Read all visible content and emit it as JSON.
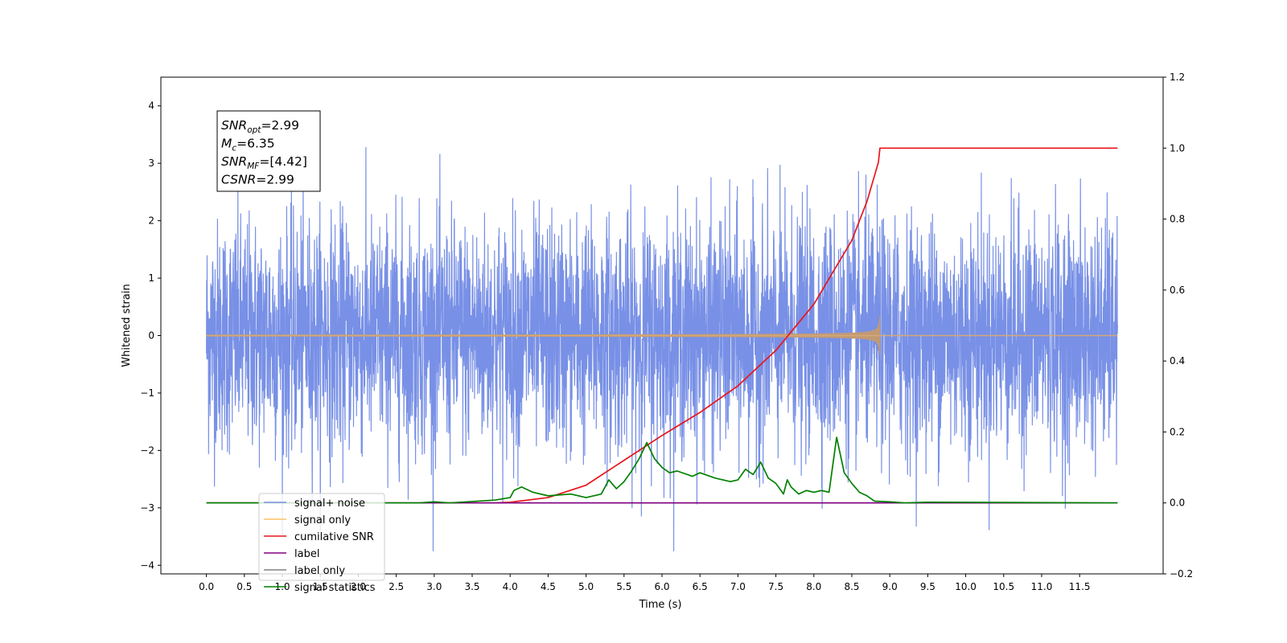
{
  "chart_data": {
    "type": "line",
    "xlabel": "Time (s)",
    "ylabel": "Whitened strain",
    "xlim": [
      -0.6,
      12.6
    ],
    "ylim": [
      -4.15,
      4.5
    ],
    "ylim_right": [
      -0.2,
      1.2
    ],
    "x_ticks": [
      "0.0",
      "0.5",
      "1.0",
      "1.5",
      "2.0",
      "2.5",
      "3.0",
      "3.5",
      "4.0",
      "4.5",
      "5.0",
      "5.5",
      "6.0",
      "6.5",
      "7.0",
      "7.5",
      "8.0",
      "8.5",
      "9.0",
      "9.5",
      "10.0",
      "10.5",
      "11.0",
      "11.5"
    ],
    "y_ticks": [
      "4",
      "3",
      "2",
      "1",
      "0",
      "−1",
      "−2",
      "−3",
      "−4"
    ],
    "y_ticks_right": [
      "1.2",
      "1.0",
      "0.8",
      "0.6",
      "0.4",
      "0.2",
      "0.0",
      "−0.2"
    ],
    "annotation": {
      "lines": [
        {
          "main": "SNR",
          "sub": "opt",
          "value": "=2.99"
        },
        {
          "main": "M",
          "sub": "c",
          "value": "=6.35"
        },
        {
          "main": "SNR",
          "sub": "MF",
          "value": "=[4.42]"
        },
        {
          "main": "CSNR",
          "sub": "",
          "value": "=2.99"
        }
      ]
    },
    "series": [
      {
        "name": "signal+ noise",
        "color": "#7890e6",
        "axis": "left",
        "kind": "noise",
        "x_range": [
          0.0,
          12.0
        ],
        "approx_std": 1.0
      },
      {
        "name": "signal only",
        "color": "#ffc067",
        "axis": "left",
        "kind": "chirp",
        "x_range": [
          0.0,
          8.87
        ],
        "peak_amplitude": 0.35,
        "merger_time": 8.87
      },
      {
        "name": "cumilative SNR",
        "color": "#e8161b",
        "axis": "right",
        "x": [
          0.0,
          3.8,
          4.0,
          4.5,
          5.0,
          5.5,
          6.0,
          6.5,
          7.0,
          7.5,
          8.0,
          8.5,
          8.7,
          8.85,
          8.87,
          12.0
        ],
        "y": [
          0.0,
          0.0,
          0.002,
          0.015,
          0.05,
          0.12,
          0.19,
          0.255,
          0.33,
          0.43,
          0.56,
          0.74,
          0.85,
          0.96,
          1.0,
          1.0
        ]
      },
      {
        "name": "label",
        "color": "#800080",
        "axis": "right",
        "x": [
          0.0,
          12.0
        ],
        "y": [
          0.0,
          0.0
        ]
      },
      {
        "name": "label only",
        "color": "#808080",
        "axis": "right",
        "legend_only": true,
        "x": [],
        "y": []
      },
      {
        "name": "signal statistics",
        "color": "#008000",
        "axis": "right",
        "x": [
          0.0,
          2.8,
          3.0,
          3.2,
          3.5,
          3.8,
          4.0,
          4.05,
          4.15,
          4.3,
          4.5,
          4.8,
          5.0,
          5.2,
          5.3,
          5.4,
          5.5,
          5.6,
          5.7,
          5.8,
          5.9,
          6.0,
          6.1,
          6.2,
          6.4,
          6.5,
          6.7,
          6.9,
          7.0,
          7.1,
          7.2,
          7.3,
          7.4,
          7.5,
          7.6,
          7.65,
          7.7,
          7.8,
          7.9,
          8.0,
          8.1,
          8.2,
          8.3,
          8.4,
          8.45,
          8.5,
          8.6,
          8.7,
          8.8,
          9.0,
          9.2,
          9.5,
          12.0
        ],
        "y": [
          0.0,
          0.0,
          0.003,
          0.0,
          0.004,
          0.008,
          0.015,
          0.035,
          0.045,
          0.03,
          0.02,
          0.025,
          0.015,
          0.025,
          0.065,
          0.04,
          0.06,
          0.09,
          0.125,
          0.17,
          0.125,
          0.1,
          0.085,
          0.09,
          0.075,
          0.085,
          0.07,
          0.06,
          0.065,
          0.095,
          0.08,
          0.115,
          0.07,
          0.055,
          0.025,
          0.065,
          0.045,
          0.025,
          0.035,
          0.03,
          0.035,
          0.03,
          0.185,
          0.085,
          0.07,
          0.055,
          0.03,
          0.02,
          0.005,
          0.003,
          0.0,
          0.002,
          0.0
        ]
      }
    ],
    "legend": {
      "placement": "lower-left",
      "entries": [
        {
          "label": "signal+ noise",
          "color": "#7890e6"
        },
        {
          "label": "signal only",
          "color": "#ffc067"
        },
        {
          "label": "cumilative SNR",
          "color": "#e8161b"
        },
        {
          "label": "label",
          "color": "#800080"
        },
        {
          "label": "label only",
          "color": "#808080"
        },
        {
          "label": "signal statistics",
          "color": "#008000"
        }
      ]
    },
    "grid": false
  }
}
